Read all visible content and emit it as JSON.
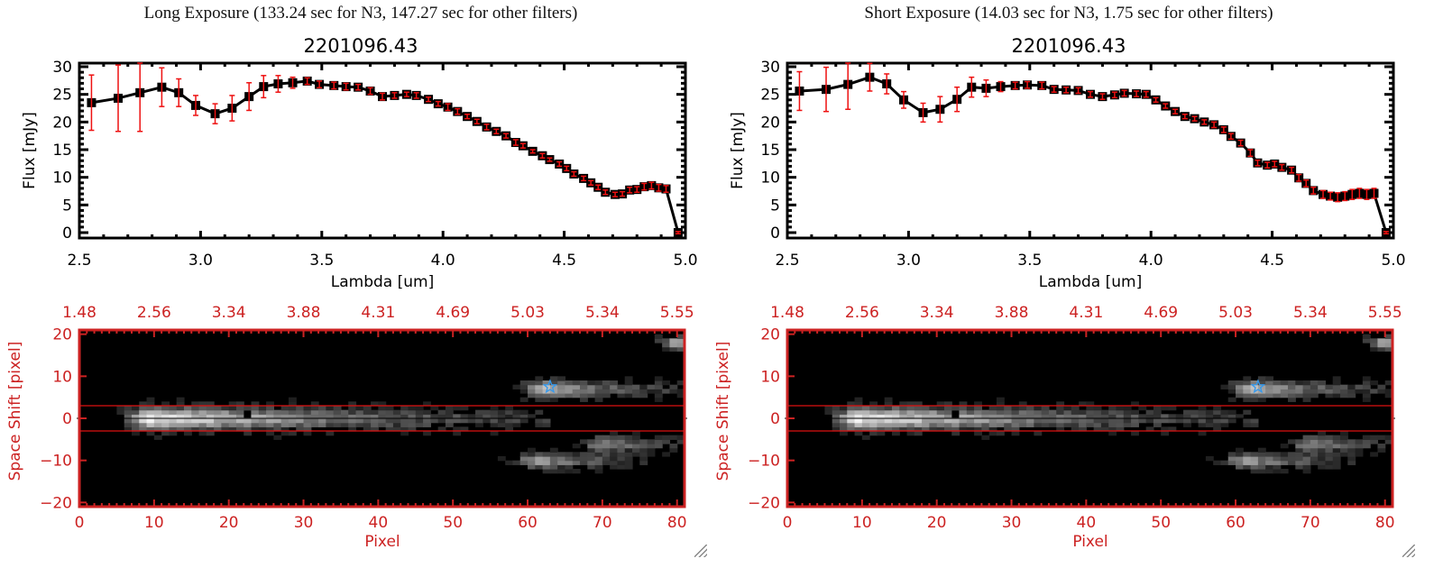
{
  "colors": {
    "axis_red": "#cc2222",
    "error_red": "#ee1111",
    "marker": "#000000",
    "star_blue": "#3399ee",
    "aperture_red": "#dd1111"
  },
  "panels": [
    {
      "exposure_title": "Long Exposure (133.24 sec for N3, 147.27 sec for other filters)",
      "plot_title": "2201096.43"
    },
    {
      "exposure_title": "Short Exposure (14.03 sec for N3, 1.75 sec for other filters)",
      "plot_title": "2201096.43"
    }
  ],
  "chart_data": [
    {
      "type": "line",
      "title": "2201096.43",
      "xlabel": "Lambda [um]",
      "ylabel": "Flux [mJy]",
      "xlim": [
        2.5,
        5.0
      ],
      "ylim": [
        -1,
        31
      ],
      "xticks": [
        "2.5",
        "3.0",
        "3.5",
        "4.0",
        "4.5",
        "5.0"
      ],
      "yticks": [
        "0",
        "5",
        "10",
        "15",
        "20",
        "25",
        "30"
      ],
      "grid": false,
      "series": [
        {
          "name": "Long Exposure",
          "x": [
            2.55,
            2.66,
            2.75,
            2.84,
            2.91,
            2.98,
            3.06,
            3.13,
            3.2,
            3.26,
            3.32,
            3.38,
            3.44,
            3.49,
            3.55,
            3.6,
            3.65,
            3.7,
            3.75,
            3.8,
            3.85,
            3.89,
            3.94,
            3.98,
            4.02,
            4.06,
            4.1,
            4.14,
            4.18,
            4.22,
            4.26,
            4.3,
            4.33,
            4.37,
            4.41,
            4.44,
            4.48,
            4.51,
            4.54,
            4.58,
            4.61,
            4.64,
            4.67,
            4.71,
            4.74,
            4.77,
            4.8,
            4.83,
            4.86,
            4.89,
            4.92,
            4.97
          ],
          "y": [
            23.5,
            24.3,
            25.3,
            26.3,
            25.3,
            23.0,
            21.5,
            22.5,
            24.6,
            26.4,
            26.9,
            27.1,
            27.4,
            26.8,
            26.6,
            26.4,
            26.3,
            25.6,
            24.6,
            24.8,
            25.0,
            24.8,
            24.1,
            23.3,
            22.7,
            21.9,
            21.0,
            20.1,
            19.1,
            18.3,
            17.5,
            16.3,
            15.7,
            14.7,
            13.9,
            13.2,
            12.4,
            11.6,
            10.6,
            9.8,
            9.0,
            8.2,
            7.3,
            6.9,
            7.0,
            7.7,
            7.8,
            8.3,
            8.5,
            8.1,
            7.9,
            0.0
          ],
          "err": [
            5.0,
            6.0,
            7.0,
            3.5,
            2.5,
            1.8,
            1.8,
            2.3,
            2.5,
            2.0,
            1.5,
            1.0,
            0.6,
            0.6,
            0.6,
            0.6,
            0.5,
            0.6,
            0.6,
            0.5,
            0.4,
            0.5,
            0.4,
            0.4,
            0.6,
            0.5,
            0.4,
            0.4,
            0.5,
            0.4,
            0.4,
            0.5,
            0.4,
            0.3,
            0.4,
            0.3,
            0.4,
            0.4,
            0.4,
            0.4,
            0.4,
            0.4,
            0.4,
            0.4,
            0.4,
            0.5,
            0.5,
            0.6,
            0.6,
            0.6,
            0.6,
            0.2
          ]
        }
      ]
    },
    {
      "type": "line",
      "title": "2201096.43",
      "xlabel": "Lambda [um]",
      "ylabel": "Flux [mJy]",
      "xlim": [
        2.5,
        5.0
      ],
      "ylim": [
        -1,
        31
      ],
      "xticks": [
        "2.5",
        "3.0",
        "3.5",
        "4.0",
        "4.5",
        "5.0"
      ],
      "yticks": [
        "0",
        "5",
        "10",
        "15",
        "20",
        "25",
        "30"
      ],
      "grid": false,
      "series": [
        {
          "name": "Short Exposure",
          "x": [
            2.55,
            2.66,
            2.75,
            2.84,
            2.91,
            2.98,
            3.06,
            3.13,
            3.2,
            3.26,
            3.32,
            3.38,
            3.44,
            3.49,
            3.55,
            3.6,
            3.65,
            3.7,
            3.75,
            3.8,
            3.85,
            3.89,
            3.94,
            3.98,
            4.02,
            4.06,
            4.1,
            4.14,
            4.18,
            4.22,
            4.26,
            4.3,
            4.33,
            4.37,
            4.41,
            4.44,
            4.48,
            4.51,
            4.54,
            4.58,
            4.61,
            4.64,
            4.67,
            4.71,
            4.74,
            4.77,
            4.8,
            4.83,
            4.86,
            4.89,
            4.92,
            4.97
          ],
          "y": [
            25.6,
            25.9,
            26.8,
            28.1,
            26.9,
            24.0,
            21.7,
            22.3,
            24.1,
            26.3,
            26.1,
            26.4,
            26.6,
            26.7,
            26.6,
            25.9,
            25.8,
            25.7,
            25.0,
            24.6,
            24.9,
            25.2,
            25.1,
            25.0,
            24.0,
            22.9,
            21.9,
            21.0,
            20.6,
            20.0,
            19.5,
            18.6,
            17.4,
            16.2,
            14.4,
            12.6,
            12.2,
            12.4,
            11.8,
            11.3,
            9.9,
            8.9,
            7.6,
            6.9,
            6.6,
            6.4,
            6.6,
            6.9,
            7.1,
            6.9,
            7.1,
            0.0
          ],
          "err": [
            3.5,
            4.0,
            4.5,
            2.5,
            1.8,
            1.5,
            1.7,
            2.3,
            2.2,
            1.8,
            1.5,
            0.9,
            0.6,
            0.6,
            0.6,
            0.5,
            0.5,
            0.5,
            0.5,
            0.5,
            0.5,
            0.5,
            0.5,
            0.5,
            0.4,
            0.4,
            0.4,
            0.4,
            0.4,
            0.4,
            0.5,
            0.5,
            0.5,
            0.5,
            0.6,
            0.5,
            0.5,
            0.5,
            0.5,
            0.5,
            0.6,
            0.6,
            0.6,
            0.7,
            0.7,
            0.8,
            0.8,
            0.9,
            0.9,
            0.9,
            0.9,
            0.2
          ]
        }
      ]
    },
    {
      "type": "heatmap",
      "title": "",
      "xlabel": "Pixel",
      "ylabel": "Space Shift [pixel]",
      "xlim": [
        0,
        81
      ],
      "ylim": [
        -21,
        21
      ],
      "xticks": [
        "0",
        "10",
        "20",
        "30",
        "40",
        "50",
        "60",
        "70",
        "80"
      ],
      "yticks": [
        "-20",
        "-10",
        "0",
        "10",
        "20"
      ],
      "top_xticks": [
        "1.48",
        "2.56",
        "3.34",
        "3.88",
        "4.31",
        "4.69",
        "5.03",
        "5.34",
        "5.55"
      ],
      "aperture_lines": [
        3,
        -3
      ],
      "center_line": 0,
      "marker_square": {
        "x": 22.5,
        "y": 1
      },
      "star_marker": {
        "x": 63,
        "y": 7.5
      },
      "sources": [
        {
          "x0": 0,
          "x1": 62,
          "y": 0,
          "peak": 0.95,
          "peak_x": 9,
          "width": 2.6
        },
        {
          "x0": 58,
          "x1": 81,
          "y": 7,
          "peak": 0.75,
          "peak_x": 62,
          "width": 2.0
        },
        {
          "x0": 56,
          "x1": 76,
          "y": -10,
          "peak": 0.65,
          "peak_x": 61,
          "width": 1.8
        },
        {
          "x0": 66,
          "x1": 81,
          "y": -6,
          "peak": 0.6,
          "peak_x": 70,
          "width": 1.8
        },
        {
          "x0": 77,
          "x1": 81,
          "y": 18,
          "peak": 0.7,
          "peak_x": 80,
          "width": 1.5
        }
      ]
    }
  ]
}
